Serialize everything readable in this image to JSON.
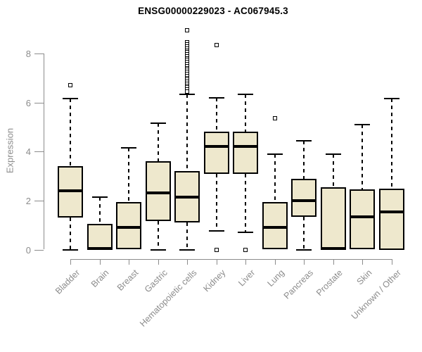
{
  "chart_data": {
    "type": "boxplot",
    "title": "ENSG00000229023 - AC067945.3",
    "ylabel": "Expression",
    "xlabel": "",
    "ylim": [
      0,
      8
    ],
    "yticks": [
      0,
      2,
      4,
      6,
      8
    ],
    "grid": false,
    "legend": false,
    "categories": [
      "Bladder",
      "Brain",
      "Breast",
      "Gastric",
      "Hematopoietic cells",
      "Kidney",
      "Liver",
      "Lung",
      "Pancreas",
      "Prostate",
      "Skin",
      "Unknown / Other"
    ],
    "boxes": [
      {
        "category": "Bladder",
        "whisker_low": 0,
        "q1": 1.3,
        "median": 2.4,
        "q3": 3.4,
        "whisker_high": 6.15,
        "outliers": [
          6.7
        ]
      },
      {
        "category": "Brain",
        "whisker_low": 0,
        "q1": 0,
        "median": 0.05,
        "q3": 1.05,
        "whisker_high": 2.15,
        "outliers": []
      },
      {
        "category": "Breast",
        "whisker_low": 0,
        "q1": 0,
        "median": 0.9,
        "q3": 1.95,
        "whisker_high": 4.15,
        "outliers": []
      },
      {
        "category": "Gastric",
        "whisker_low": 0,
        "q1": 1.15,
        "median": 2.3,
        "q3": 3.6,
        "whisker_high": 5.15,
        "outliers": []
      },
      {
        "category": "Hematopoietic cells",
        "whisker_low": 0,
        "q1": 1.1,
        "median": 2.15,
        "q3": 3.2,
        "whisker_high": 6.35,
        "outliers": [
          8.95,
          8.45,
          8.37,
          8.29,
          8.21,
          8.13,
          8.05,
          7.97,
          7.89,
          7.81,
          7.73,
          7.65,
          7.57,
          7.49,
          7.41,
          7.33,
          7.25,
          7.17,
          7.09,
          7.01,
          6.93,
          6.85,
          6.77,
          6.69,
          6.61,
          6.53,
          6.45
        ]
      },
      {
        "category": "Kidney",
        "whisker_low": 0.75,
        "q1": 3.1,
        "median": 4.2,
        "q3": 4.8,
        "whisker_high": 6.2,
        "outliers": [
          8.35,
          0.0
        ]
      },
      {
        "category": "Liver",
        "whisker_low": 0.7,
        "q1": 3.1,
        "median": 4.2,
        "q3": 4.8,
        "whisker_high": 6.35,
        "outliers": [
          0.0
        ]
      },
      {
        "category": "Lung",
        "whisker_low": 0,
        "q1": 0,
        "median": 0.9,
        "q3": 1.95,
        "whisker_high": 3.9,
        "outliers": [
          5.35
        ]
      },
      {
        "category": "Pancreas",
        "whisker_low": 0,
        "q1": 1.35,
        "median": 2.0,
        "q3": 2.9,
        "whisker_high": 4.45,
        "outliers": []
      },
      {
        "category": "Prostate",
        "whisker_low": 0,
        "q1": 0,
        "median": 0.05,
        "q3": 2.55,
        "whisker_high": 3.9,
        "outliers": []
      },
      {
        "category": "Skin",
        "whisker_low": 0,
        "q1": 0,
        "median": 1.35,
        "q3": 2.45,
        "whisker_high": 5.1,
        "outliers": []
      },
      {
        "category": "Unknown / Other",
        "whisker_low": 0,
        "q1": 0,
        "median": 1.55,
        "q3": 2.5,
        "whisker_high": 6.15,
        "outliers": []
      }
    ],
    "colors": {
      "box_fill": "#EEE8CD",
      "box_border": "#000000",
      "median": "#000000",
      "axis": "#8C8C8C",
      "title": "#000000",
      "background": "#FFFFFF"
    }
  }
}
